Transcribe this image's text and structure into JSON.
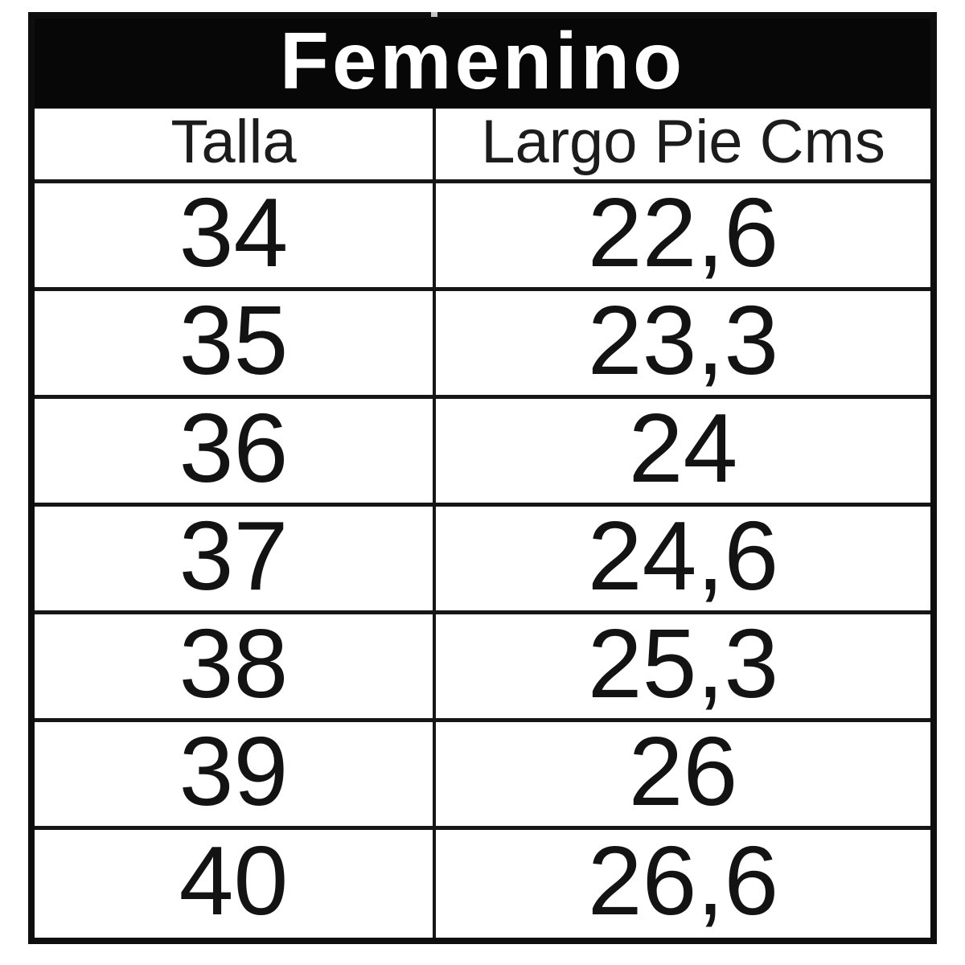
{
  "table": {
    "title": "Femenino",
    "columns": [
      "Talla",
      "Largo Pie Cms"
    ],
    "rows": [
      {
        "talla": "34",
        "largo": "22,6"
      },
      {
        "talla": "35",
        "largo": "23,3"
      },
      {
        "talla": "36",
        "largo": "24"
      },
      {
        "talla": "37",
        "largo": "24,6"
      },
      {
        "talla": "38",
        "largo": "25,3"
      },
      {
        "talla": "39",
        "largo": "26"
      },
      {
        "talla": "40",
        "largo": "26,6"
      }
    ]
  },
  "colors": {
    "background": "#ffffff",
    "title_band_bg": "#070707",
    "title_text": "#ffffff",
    "border": "#0e0e0e",
    "inner_rule": "#161616",
    "cell_text": "#131313"
  }
}
